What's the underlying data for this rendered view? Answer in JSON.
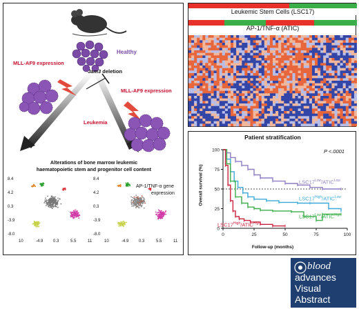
{
  "left": {
    "healthy": "Healthy",
    "mll_af9_left": "MLL-AF9 expression",
    "jam3_italic": "Jam3",
    "jam3_rest": " deletion",
    "mll_af9_right": "MLL-AF9 expression",
    "leukemia": "Leukemia",
    "alterations_line1": "Alterations of bone marrow leukemic",
    "alterations_line2": "haematopoietic stem and progenitor cell content",
    "tsne_annotation_line1": "AP-1/TNF-α gene",
    "tsne_annotation_line2": "expression",
    "tsne_y_ticks": [
      "8.4",
      "4.2",
      "0.3",
      "-3.9",
      "-8.0"
    ],
    "tsne_x_ticks": [
      "10",
      "-4.9",
      "0.3",
      "5.5",
      "11"
    ]
  },
  "heatmap": {
    "title_lsc": "Leukemic Stem Cells (LSC17)",
    "title_atic": "AP-1/TNF-α (ATIC)",
    "colors": {
      "red": "#e8312a",
      "green": "#3aae49",
      "high": "#e8663c",
      "low": "#3346a8"
    }
  },
  "survival": {
    "title": "Patient stratification",
    "p_value": "P <.0001",
    "ylabel": "Overall survival (%)",
    "xlabel": "Follow-up (months)",
    "y_ticks": [
      "100",
      "75",
      "50",
      "25",
      "0"
    ],
    "x_ticks": [
      "0",
      "25",
      "50",
      "75",
      "100"
    ],
    "label_low_low": "LSC17Low/ATICLow",
    "label_high_low": "LSC17High/ATICLow",
    "label_low_high": "LSC17Low/ATICHigh",
    "label_high_high": "LSC17High/ATICHigh"
  },
  "chart_data": {
    "type": "line",
    "title": "Patient stratification",
    "xlabel": "Follow-up (months)",
    "ylabel": "Overall survival (%)",
    "xlim": [
      0,
      100
    ],
    "ylim": [
      0,
      100
    ],
    "reference_line_y": 50,
    "series": [
      {
        "name": "LSC17Low/ATICLow",
        "color": "#8e7cc3",
        "x": [
          0,
          3,
          6,
          10,
          15,
          20,
          25,
          30,
          40,
          50,
          60,
          70,
          80,
          95
        ],
        "y": [
          100,
          96,
          90,
          85,
          80,
          75,
          68,
          64,
          60,
          57,
          55,
          52,
          50,
          50
        ]
      },
      {
        "name": "LSC17High/ATICLow",
        "color": "#3aa8d8",
        "x": [
          0,
          3,
          6,
          9,
          12,
          16,
          20,
          25,
          35,
          45,
          60,
          70,
          85,
          95
        ],
        "y": [
          100,
          88,
          72,
          60,
          52,
          45,
          40,
          37,
          35,
          33,
          32,
          32,
          25,
          22
        ]
      },
      {
        "name": "LSC17Low/ATICHigh",
        "color": "#3aae49",
        "x": [
          0,
          3,
          6,
          10,
          15,
          20,
          25,
          30,
          40,
          55,
          65,
          75,
          80,
          95
        ],
        "y": [
          100,
          82,
          60,
          40,
          32,
          27,
          25,
          23,
          22,
          21,
          15,
          10,
          18,
          18
        ]
      },
      {
        "name": "LSC17High/ATICHigh",
        "color": "#cc1f3c",
        "x": [
          0,
          2,
          4,
          6,
          8,
          10,
          13,
          17,
          22,
          30,
          40,
          50
        ],
        "y": [
          100,
          80,
          55,
          35,
          22,
          15,
          12,
          10,
          8,
          5,
          3,
          3
        ]
      }
    ]
  },
  "logo": {
    "blood": "blood",
    "advances": "advances",
    "visual": "Visual",
    "abstract": "Abstract"
  }
}
